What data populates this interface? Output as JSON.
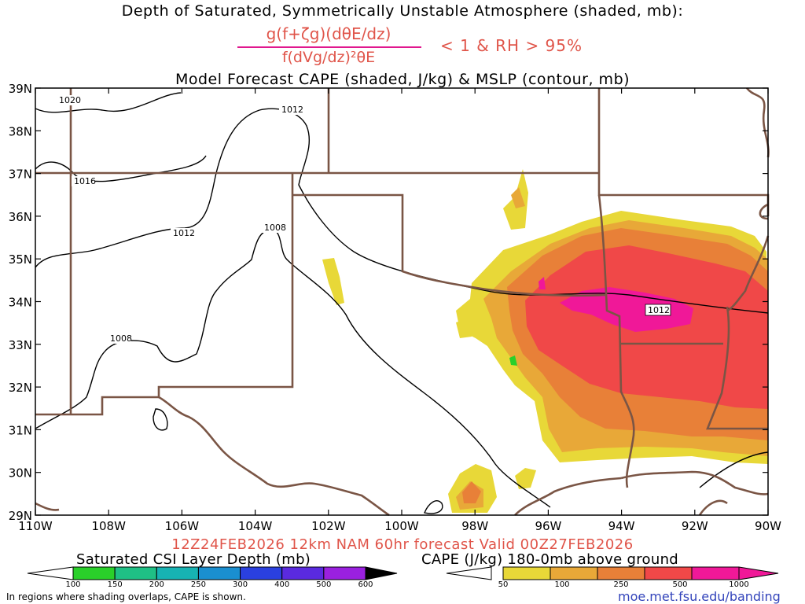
{
  "title": {
    "line1": "Depth of Saturated, Symmetrically Unstable Atmosphere (shaded, mb):",
    "numerator": "g(f+ζg)(dθE/dz)",
    "denominator": "f(dVg/dz)²θE",
    "condition": "< 1 & RH > 95%",
    "line3": "Model Forecast CAPE (shaded, J/kg) & MSLP (contour, mb)"
  },
  "map": {
    "lat_labels": [
      "39N",
      "38N",
      "37N",
      "36N",
      "35N",
      "34N",
      "33N",
      "32N",
      "31N",
      "30N",
      "29N"
    ],
    "lon_labels": [
      "110W",
      "108W",
      "106W",
      "104W",
      "102W",
      "100W",
      "98W",
      "96W",
      "94W",
      "92W",
      "90W"
    ],
    "isobar_labels": [
      "1020",
      "1012",
      "1016",
      "1012",
      "1008",
      "1008",
      "1012"
    ],
    "colors": {
      "state_border": "#7a5545",
      "isobar": "#000000"
    }
  },
  "valid": "12Z24FEB2026 12km NAM 60hr forecast Valid 00Z27FEB2026",
  "csi_colorbar": {
    "title": "Saturated CSI Layer Depth (mb)",
    "labels": [
      "100",
      "150",
      "200",
      "250",
      "300",
      "400",
      "500",
      "600"
    ],
    "colors": [
      "#2ad02a",
      "#1fc085",
      "#17b3b3",
      "#1a8fd0",
      "#2a40e0",
      "#5a2ae0",
      "#9a20e0"
    ]
  },
  "cape_colorbar": {
    "title": "CAPE (J/kg) 180-0mb above ground",
    "labels": [
      "50",
      "100",
      "250",
      "500",
      "1000"
    ],
    "colors": [
      "#e8d838",
      "#e8a838",
      "#e88038",
      "#f04848",
      "#f01898"
    ]
  },
  "footer": {
    "note": "In regions where shading overlaps, CAPE is shown.",
    "credit": "moe.met.fsu.edu/banding"
  }
}
